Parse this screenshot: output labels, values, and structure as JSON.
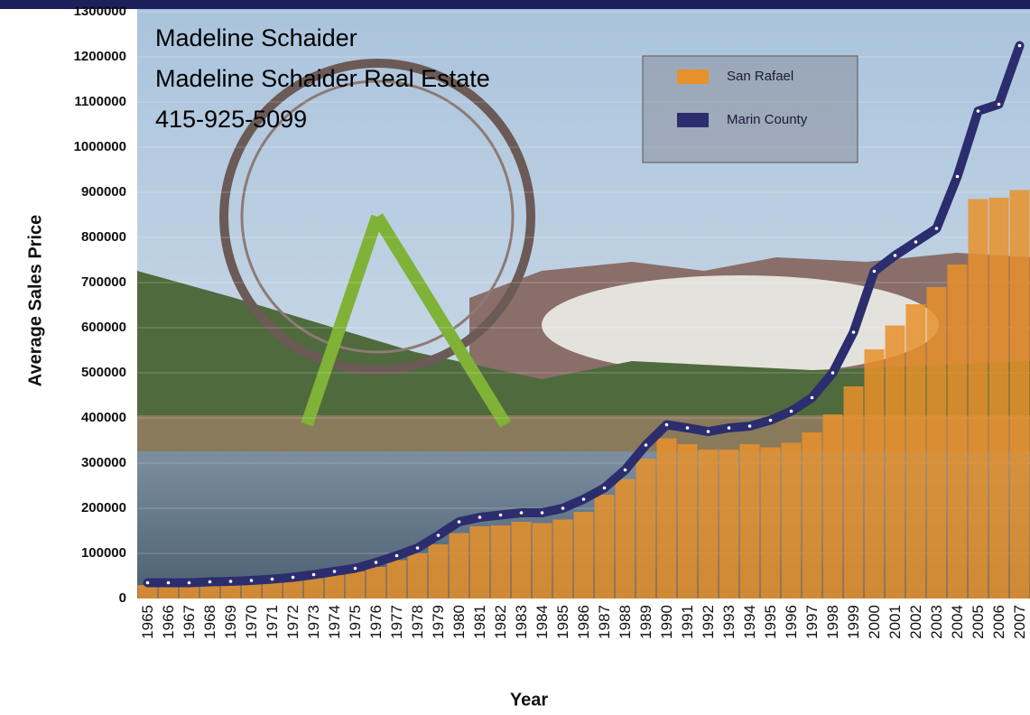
{
  "chart_data": {
    "type": "bar-line",
    "y_axis_title": "Average Sales Price",
    "x_axis_title": "Year",
    "annotations": [
      "Madeline Schaider",
      "Madeline Schaider Real Estate",
      "415-925-5099"
    ],
    "categories": [
      "1965",
      "1966",
      "1967",
      "1968",
      "1969",
      "1970",
      "1971",
      "1972",
      "1973",
      "1974",
      "1975",
      "1976",
      "1977",
      "1978",
      "1979",
      "1980",
      "1981",
      "1982",
      "1983",
      "1984",
      "1985",
      "1986",
      "1987",
      "1988",
      "1989",
      "1990",
      "1991",
      "1992",
      "1993",
      "1994",
      "1995",
      "1996",
      "1997",
      "1998",
      "1999",
      "2000",
      "2001",
      "2002",
      "2003",
      "2004",
      "2005",
      "2006",
      "2007"
    ],
    "series": [
      {
        "name": "San Rafael",
        "type": "bar",
        "color": "#e8902a",
        "values": [
          30000,
          30000,
          30000,
          30000,
          32000,
          33000,
          36000,
          40000,
          45000,
          52000,
          60000,
          70000,
          85000,
          100000,
          120000,
          145000,
          160000,
          162000,
          170000,
          167000,
          175000,
          192000,
          230000,
          265000,
          310000,
          355000,
          342000,
          330000,
          330000,
          342000,
          335000,
          345000,
          368000,
          408000,
          470000,
          552000,
          605000,
          652000,
          690000,
          740000,
          885000,
          888000,
          905000
        ]
      },
      {
        "name": "Marin County",
        "type": "line",
        "color": "#2b2d6e",
        "values": [
          35000,
          35000,
          35000,
          37000,
          38000,
          40000,
          43000,
          47000,
          53000,
          60000,
          67000,
          80000,
          95000,
          112000,
          140000,
          170000,
          180000,
          185000,
          190000,
          190000,
          200000,
          220000,
          245000,
          285000,
          340000,
          385000,
          378000,
          370000,
          378000,
          382000,
          395000,
          415000,
          445000,
          500000,
          590000,
          725000,
          760000,
          790000,
          820000,
          935000,
          1080000,
          1095000,
          1225000
        ]
      }
    ],
    "ylim": [
      0,
      1300000
    ],
    "yticks": [
      0,
      100000,
      200000,
      300000,
      400000,
      500000,
      600000,
      700000,
      800000,
      900000,
      1000000,
      1100000,
      1200000,
      1300000
    ],
    "legend": "top-right"
  }
}
